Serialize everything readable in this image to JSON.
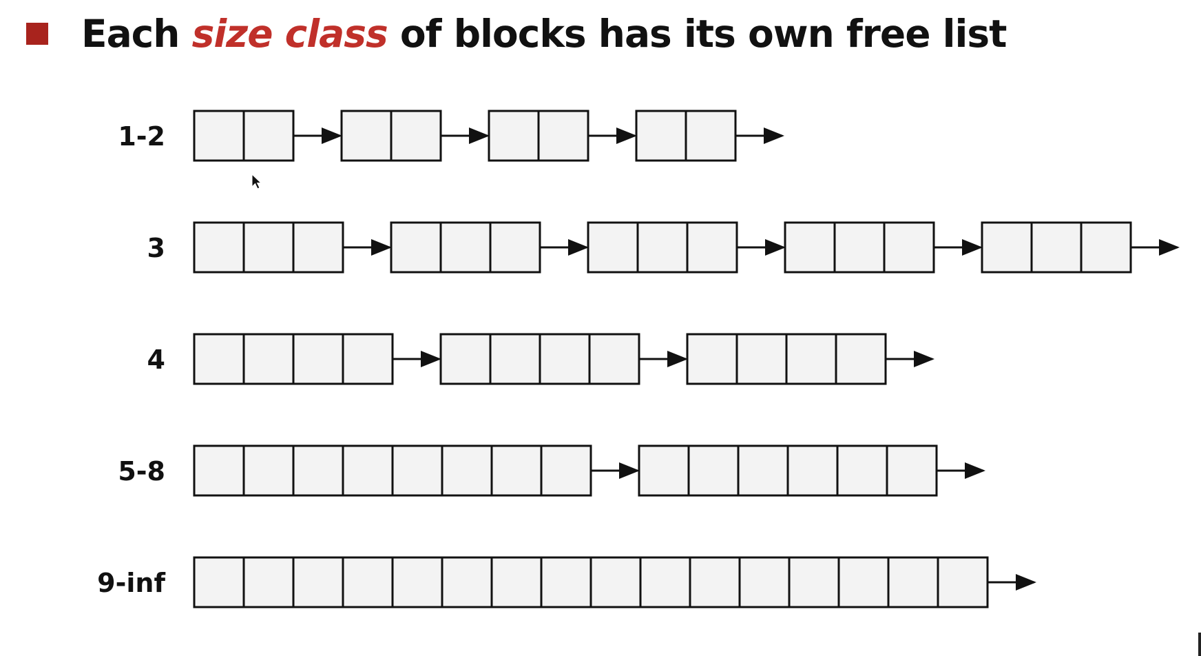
{
  "heading": {
    "before": "Each ",
    "emphasis": "size class",
    "after": " of blocks has its own free list"
  },
  "size_classes": [
    {
      "label": "1-2",
      "cells_per_block": 2,
      "block_count": 4
    },
    {
      "label": "3",
      "cells_per_block": 3,
      "block_count": 5
    },
    {
      "label": "4",
      "cells_per_block": 4,
      "block_count": 3
    },
    {
      "label": "5-8",
      "cells_per_block": 8,
      "block_count": 1,
      "extra_block_cells": 6
    },
    {
      "label": "9-inf",
      "cells_per_block": 16,
      "block_count": 1
    }
  ],
  "colors": {
    "bullet": "#a8231d",
    "emphasis": "#c0302a",
    "text": "#111111",
    "cell_fill": "#f3f3f3",
    "stroke": "#111111"
  },
  "icons": {
    "bullet": "square-bullet-icon",
    "pointer": "mouse-cursor-icon"
  }
}
